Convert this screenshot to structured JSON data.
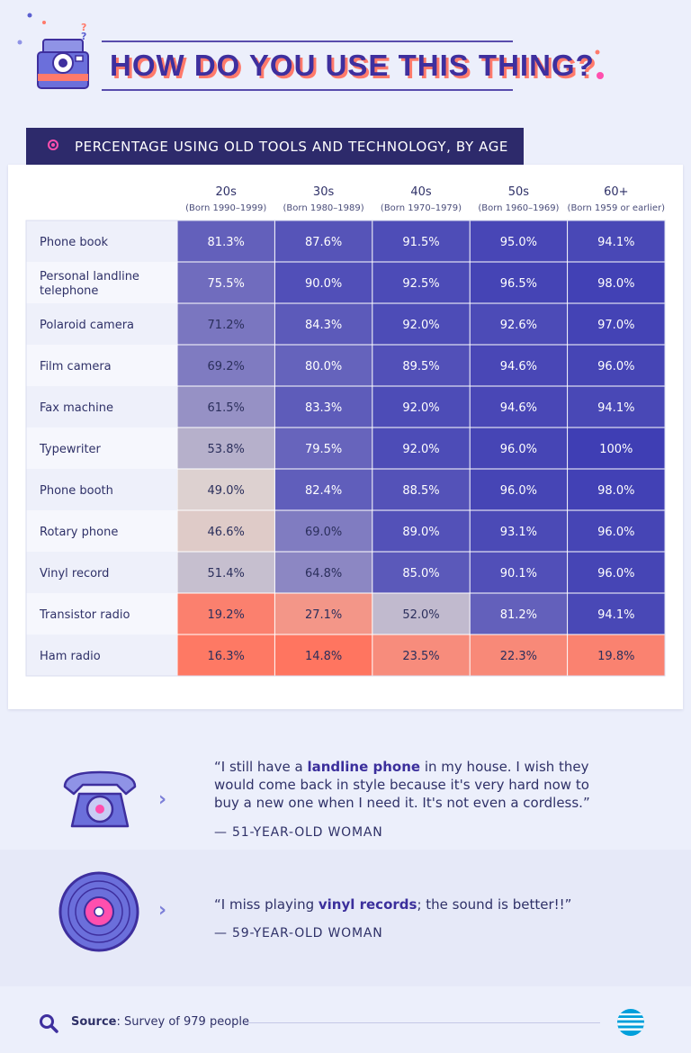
{
  "header": {
    "title": "HOW DO YOU USE THIS THING?",
    "subtitle": "PERCENTAGE USING OLD TOOLS AND TECHNOLOGY, BY AGE",
    "icon": "polaroid-camera-icon"
  },
  "colors": {
    "title": "#3e2f9e",
    "title_shadow": "#ff7a6b",
    "banner": "#2d2a6b",
    "cell_high": "#3f3eb4",
    "cell_mid": "#dcd4d3",
    "cell_low": "#ff7560"
  },
  "chart_data": {
    "type": "table",
    "title": "PERCENTAGE USING OLD TOOLS AND TECHNOLOGY, BY AGE",
    "columns": [
      {
        "label": "20s",
        "sub": "(Born 1990–1999)"
      },
      {
        "label": "30s",
        "sub": "(Born 1980–1989)"
      },
      {
        "label": "40s",
        "sub": "(Born 1970–1979)"
      },
      {
        "label": "50s",
        "sub": "(Born 1960–1969)"
      },
      {
        "label": "60+",
        "sub": "(Born 1959 or earlier)"
      }
    ],
    "rows": [
      {
        "label": "Phone book",
        "values": [
          81.3,
          87.6,
          91.5,
          95.0,
          94.1
        ],
        "display": [
          "81.3%",
          "87.6%",
          "91.5%",
          "95.0%",
          "94.1%"
        ]
      },
      {
        "label": "Personal landline telephone",
        "values": [
          75.5,
          90.0,
          92.5,
          96.5,
          98.0
        ],
        "display": [
          "75.5%",
          "90.0%",
          "92.5%",
          "96.5%",
          "98.0%"
        ]
      },
      {
        "label": "Polaroid camera",
        "values": [
          71.2,
          84.3,
          92.0,
          92.6,
          97.0
        ],
        "display": [
          "71.2%",
          "84.3%",
          "92.0%",
          "92.6%",
          "97.0%"
        ]
      },
      {
        "label": "Film camera",
        "values": [
          69.2,
          80.0,
          89.5,
          94.6,
          96.0
        ],
        "display": [
          "69.2%",
          "80.0%",
          "89.5%",
          "94.6%",
          "96.0%"
        ]
      },
      {
        "label": "Fax machine",
        "values": [
          61.5,
          83.3,
          92.0,
          94.6,
          94.1
        ],
        "display": [
          "61.5%",
          "83.3%",
          "92.0%",
          "94.6%",
          "94.1%"
        ]
      },
      {
        "label": "Typewriter",
        "values": [
          53.8,
          79.5,
          92.0,
          96.0,
          100
        ],
        "display": [
          "53.8%",
          "79.5%",
          "92.0%",
          "96.0%",
          "100%"
        ]
      },
      {
        "label": "Phone booth",
        "values": [
          49.0,
          82.4,
          88.5,
          96.0,
          98.0
        ],
        "display": [
          "49.0%",
          "82.4%",
          "88.5%",
          "96.0%",
          "98.0%"
        ]
      },
      {
        "label": "Rotary phone",
        "values": [
          46.6,
          69.0,
          89.0,
          93.1,
          96.0
        ],
        "display": [
          "46.6%",
          "69.0%",
          "89.0%",
          "93.1%",
          "96.0%"
        ]
      },
      {
        "label": "Vinyl record",
        "values": [
          51.4,
          64.8,
          85.0,
          90.1,
          96.0
        ],
        "display": [
          "51.4%",
          "64.8%",
          "85.0%",
          "90.1%",
          "96.0%"
        ]
      },
      {
        "label": "Transistor radio",
        "values": [
          19.2,
          27.1,
          52.0,
          81.2,
          94.1
        ],
        "display": [
          "19.2%",
          "27.1%",
          "52.0%",
          "81.2%",
          "94.1%"
        ]
      },
      {
        "label": "Ham radio",
        "values": [
          16.3,
          14.8,
          23.5,
          22.3,
          19.8
        ],
        "display": [
          "16.3%",
          "14.8%",
          "23.5%",
          "22.3%",
          "19.8%"
        ]
      }
    ]
  },
  "quotes": [
    {
      "icon": "rotary-telephone-icon",
      "pre": "“I still have a ",
      "highlight": "landline phone",
      "post": " in my house. I wish they would come back in style because it's very hard now to buy a new one when I need it. It's not even a cordless.”",
      "author": "— 51-YEAR-OLD WOMAN"
    },
    {
      "icon": "vinyl-record-icon",
      "pre": "“I miss playing ",
      "highlight": "vinyl records",
      "post": "; the sound is better!!”",
      "author": "— 59-YEAR-OLD WOMAN"
    }
  ],
  "footer": {
    "source_label": "Source",
    "source_text": ": Survey of 979 people",
    "search_icon": "search-icon",
    "brand_icon": "globe-logo-icon"
  }
}
